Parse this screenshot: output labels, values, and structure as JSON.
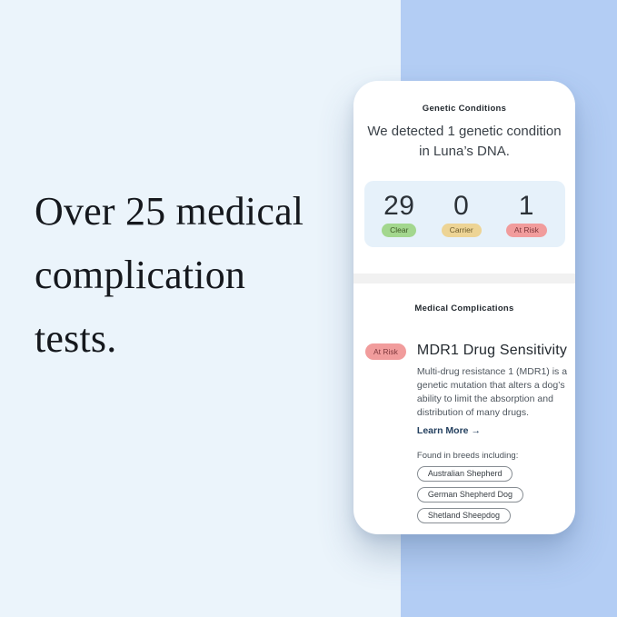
{
  "left_panel": {
    "headline": "Over 25 medical complication tests."
  },
  "phone": {
    "genetic_conditions": {
      "section_label": "Genetic Conditions",
      "headline": "We detected 1 genetic condition in Luna’s DNA.",
      "stats": [
        {
          "value": "29",
          "label": "Clear"
        },
        {
          "value": "0",
          "label": "Carrier"
        },
        {
          "value": "1",
          "label": "At Risk"
        }
      ]
    },
    "medical_complications": {
      "section_label": "Medical Complications",
      "condition": {
        "risk_label": "At Risk",
        "name": "MDR1 Drug Sensitivity",
        "description": "Multi-drug resistance 1 (MDR1) is a genetic mutation that alters a dog’s ability to limit the absorption and distribution of many drugs.",
        "learn_more_label": "Learn More",
        "arrow_icon": "→",
        "breeds_label": "Found in breeds including:",
        "breeds": [
          "Australian Shepherd",
          "German Shepherd Dog",
          "Shetland Sheepdog"
        ]
      }
    }
  },
  "colors": {
    "page_bg": "#ebf4fb",
    "accent_band": "#b3cdf4",
    "card_bg": "#ffffff",
    "stats_box_bg": "#e6f1fa",
    "clear_pill_bg": "#a3d78e",
    "carrier_pill_bg": "#edd495",
    "at_risk_pill_bg": "#f19c9c",
    "headline_text": "#15181d",
    "learn_more_text": "#24405f"
  }
}
